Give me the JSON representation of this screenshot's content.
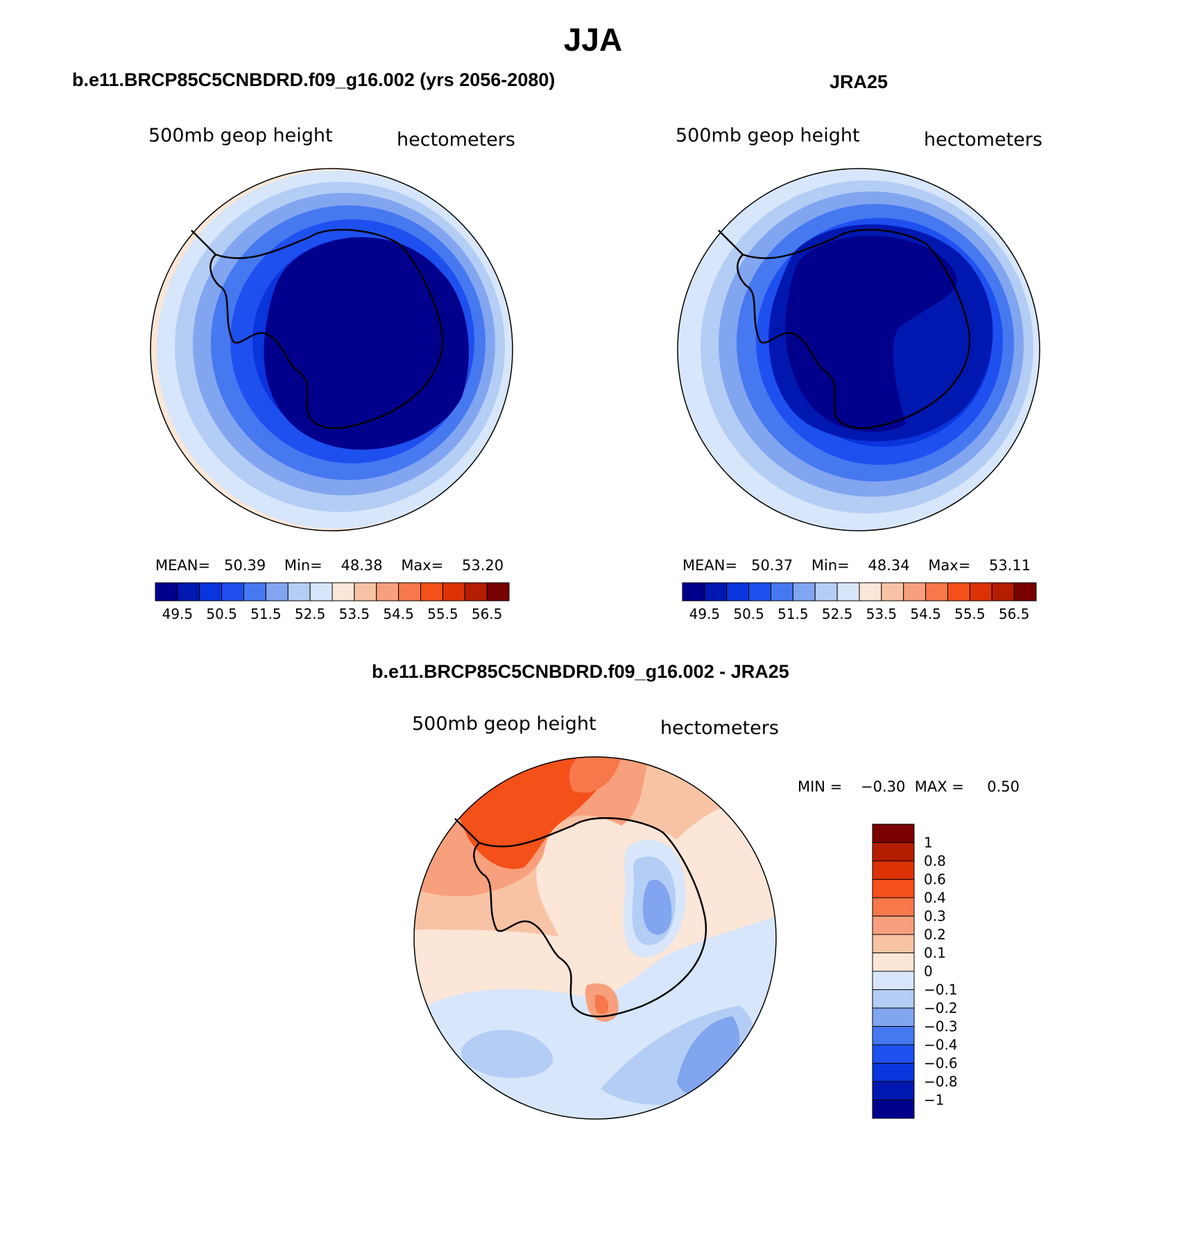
{
  "title": "JJA",
  "panels": [
    {
      "id": "model",
      "title": "b.e11.BRCP85C5CNBDRD.f09_g16.002 (yrs 2056-2080)",
      "left_label": "500mb  geop  height",
      "right_label": "hectometers",
      "stats": {
        "mean_label": "MEAN=",
        "mean": "50.39",
        "min_label": "Min=",
        "min": "48.38",
        "max_label": "Max=",
        "max": "53.20"
      }
    },
    {
      "id": "obs",
      "title": "JRA25",
      "left_label": "500mb  geop  height",
      "right_label": "hectometers",
      "stats": {
        "mean_label": "MEAN=",
        "mean": "50.37",
        "min_label": "Min=",
        "min": "48.34",
        "max_label": "Max=",
        "max": "53.11"
      }
    },
    {
      "id": "diff",
      "title": "b.e11.BRCP85C5CNBDRD.f09_g16.002 - JRA25",
      "left_label": "500mb  geop  height",
      "right_label": "hectometers",
      "minmax": {
        "min_label": "MIN =",
        "min": "−0.30",
        "max_label": "MAX =",
        "max": "0.50"
      }
    }
  ],
  "colorbar_abs": {
    "colors": [
      "#00008c",
      "#0018b0",
      "#0a34dc",
      "#1e50f0",
      "#4678f0",
      "#82a5f0",
      "#b4cdf5",
      "#d7e6fa",
      "#fbe6d7",
      "#f8c3a5",
      "#f8a07d",
      "#f6784b",
      "#f45019",
      "#dc3205",
      "#b41e00",
      "#780000"
    ],
    "labels": [
      "49.5",
      "50.5",
      "51.5",
      "52.5",
      "53.5",
      "54.5",
      "55.5",
      "56.5"
    ]
  },
  "colorbar_diff": {
    "colors": [
      "#00008c",
      "#0018b0",
      "#0a34dc",
      "#1e50f0",
      "#4678f0",
      "#82a5f0",
      "#b4cdf5",
      "#d7e6fa",
      "#fbe6d7",
      "#f8c3a5",
      "#f8a07d",
      "#f6784b",
      "#f45019",
      "#dc3205",
      "#b41e00",
      "#780000"
    ],
    "labels": [
      "1",
      "0.8",
      "0.6",
      "0.4",
      "0.3",
      "0.2",
      "0.1",
      "0",
      "−0.1",
      "−0.2",
      "−0.3",
      "−0.4",
      "−0.6",
      "−0.8",
      "−1"
    ]
  }
}
